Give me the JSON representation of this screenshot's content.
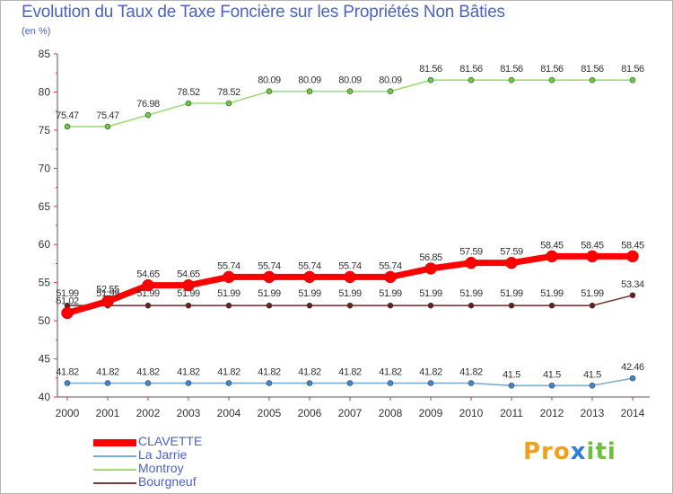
{
  "chart_data": {
    "type": "line",
    "title": "Evolution du Taux de Taxe Foncière sur les Propriétés Non Bâties",
    "ylabel": "(en %)",
    "xlabel": "",
    "ylim": [
      40,
      85
    ],
    "yticks": [
      40,
      45,
      50,
      55,
      60,
      65,
      70,
      75,
      80,
      85
    ],
    "x": [
      "2000",
      "2001",
      "2002",
      "2003",
      "2004",
      "2005",
      "2006",
      "2007",
      "2008",
      "2009",
      "2010",
      "2011",
      "2012",
      "2013",
      "2014"
    ],
    "grid": false,
    "legend_position": "bottom-left",
    "series": [
      {
        "name": "CLAVETTE",
        "color": "#ff0000",
        "point_color": "#ff0000",
        "labels": [
          "51.02",
          "52.55",
          "54.65",
          "54.65",
          "55.74",
          "55.74",
          "55.74",
          "55.74",
          "55.74",
          "56.85",
          "57.59",
          "57.59",
          "58.45",
          "58.45",
          "58.45"
        ],
        "values": [
          51.02,
          52.55,
          54.65,
          54.65,
          55.74,
          55.74,
          55.74,
          55.74,
          55.74,
          56.85,
          57.59,
          57.59,
          58.45,
          58.45,
          58.45
        ]
      },
      {
        "name": "La Jarrie",
        "color": "#7aaad6",
        "point_color": "#3a88d0",
        "labels": [
          "41.82",
          "41.82",
          "41.82",
          "41.82",
          "41.82",
          "41.82",
          "41.82",
          "41.82",
          "41.82",
          "41.82",
          "41.82",
          "41.5",
          "41.5",
          "41.5",
          "42.46"
        ],
        "values": [
          41.82,
          41.82,
          41.82,
          41.82,
          41.82,
          41.82,
          41.82,
          41.82,
          41.82,
          41.82,
          41.82,
          41.5,
          41.5,
          41.5,
          42.46
        ]
      },
      {
        "name": "Montroy",
        "color": "#9fdc78",
        "point_color": "#6ccb3a",
        "labels": [
          "75.47",
          "75.47",
          "76.98",
          "78.52",
          "78.52",
          "80.09",
          "80.09",
          "80.09",
          "80.09",
          "81.56",
          "81.56",
          "81.56",
          "81.56",
          "81.56",
          "81.56"
        ],
        "values": [
          75.47,
          75.47,
          76.98,
          78.52,
          78.52,
          80.09,
          80.09,
          80.09,
          80.09,
          81.56,
          81.56,
          81.56,
          81.56,
          81.56,
          81.56
        ]
      },
      {
        "name": "Bourgneuf",
        "color": "#7a3a3a",
        "point_color": "#6b1f1f",
        "labels": [
          "51.99",
          "51.99",
          "51.99",
          "51.99",
          "51.99",
          "51.99",
          "51.99",
          "51.99",
          "51.99",
          "51.99",
          "51.99",
          "51.99",
          "51.99",
          "51.99",
          "53.34"
        ],
        "values": [
          51.99,
          51.99,
          51.99,
          51.99,
          51.99,
          51.99,
          51.99,
          51.99,
          51.99,
          51.99,
          51.99,
          51.99,
          51.99,
          51.99,
          53.34
        ]
      }
    ]
  },
  "logo": {
    "part1": "Pro",
    "part2": "x",
    "part3": "iti"
  }
}
